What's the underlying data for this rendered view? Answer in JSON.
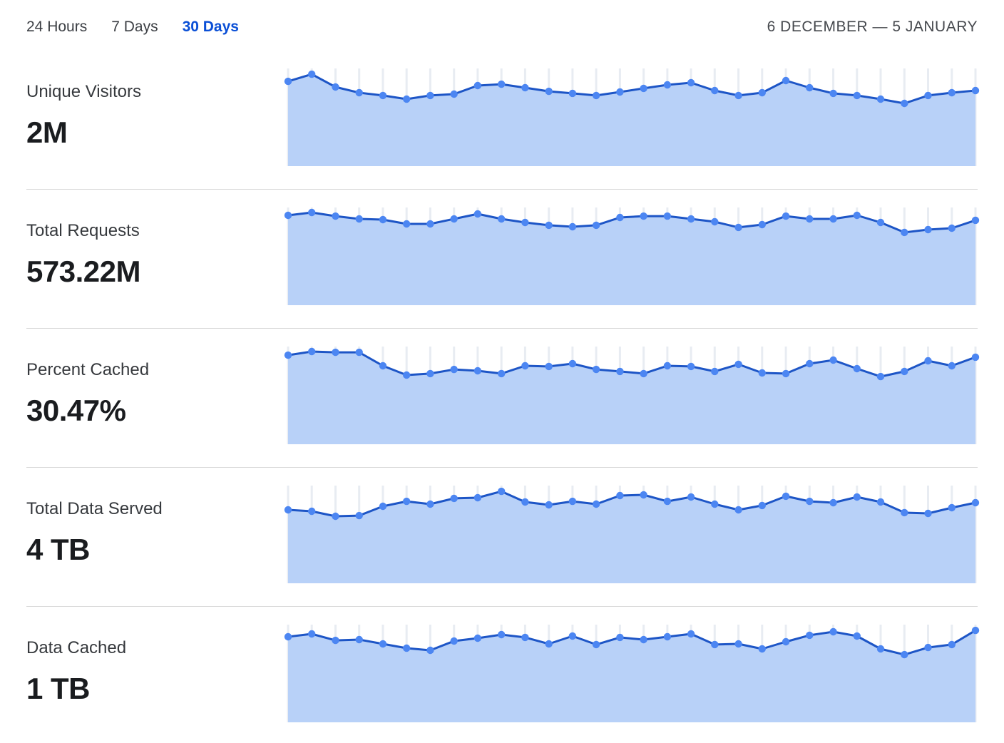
{
  "header": {
    "tabs": [
      {
        "label": "24 Hours",
        "active": false
      },
      {
        "label": "7 Days",
        "active": false
      },
      {
        "label": "30 Days",
        "active": true
      }
    ],
    "date_range": "6 DECEMBER — 5 JANUARY"
  },
  "colors": {
    "active_tab_blue": "#0a4fd6",
    "line_blue": "#1d55c6",
    "dot_blue": "#4c86f2",
    "area_fill_blue": "#b8d1f8",
    "gridline": "#e8ecf2",
    "divider": "#d9d9d9",
    "label_gray": "#36393d",
    "value_black": "#1a1c1f"
  },
  "chart_data": [
    {
      "type": "area",
      "title": "Unique Visitors",
      "display_value": "2M",
      "x": "30 daily points, 6 December – 5 January",
      "legend": "none",
      "grid": "vertical ticks per day",
      "yaxis": "unlabeled (relative 0–1 of panel height)",
      "values_relative": [
        0.868,
        0.941,
        0.81,
        0.752,
        0.723,
        0.686,
        0.723,
        0.737,
        0.825,
        0.839,
        0.803,
        0.766,
        0.745,
        0.723,
        0.759,
        0.796,
        0.832,
        0.854,
        0.774,
        0.723,
        0.752,
        0.876,
        0.803,
        0.745,
        0.723,
        0.686,
        0.642,
        0.723,
        0.752,
        0.774
      ]
    },
    {
      "type": "area",
      "title": "Total Requests",
      "display_value": "573.22M",
      "x": "30 daily points, 6 December – 5 January",
      "legend": "none",
      "grid": "vertical ticks per day",
      "yaxis": "unlabeled (relative 0–1 of panel height)",
      "values_relative": [
        0.92,
        0.949,
        0.912,
        0.883,
        0.876,
        0.832,
        0.832,
        0.883,
        0.934,
        0.883,
        0.847,
        0.818,
        0.803,
        0.818,
        0.898,
        0.912,
        0.912,
        0.883,
        0.854,
        0.796,
        0.825,
        0.912,
        0.883,
        0.883,
        0.92,
        0.847,
        0.745,
        0.774,
        0.788,
        0.869
      ]
    },
    {
      "type": "area",
      "title": "Percent Cached",
      "display_value": "30.47%",
      "x": "30 daily points, 6 December – 5 January",
      "legend": "none",
      "grid": "vertical ticks per day",
      "yaxis": "unlabeled (relative 0–1 of panel height)",
      "values_relative": [
        0.912,
        0.949,
        0.941,
        0.941,
        0.803,
        0.708,
        0.723,
        0.766,
        0.752,
        0.723,
        0.803,
        0.796,
        0.825,
        0.766,
        0.745,
        0.723,
        0.803,
        0.796,
        0.745,
        0.818,
        0.73,
        0.723,
        0.825,
        0.861,
        0.774,
        0.693,
        0.745,
        0.854,
        0.803,
        0.891
      ]
    },
    {
      "type": "area",
      "title": "Total Data Served",
      "display_value": "4 TB",
      "x": "30 daily points, 6 December – 5 January",
      "legend": "none",
      "grid": "vertical ticks per day",
      "yaxis": "unlabeled (relative 0–1 of panel height)",
      "values_relative": [
        0.752,
        0.737,
        0.686,
        0.693,
        0.788,
        0.839,
        0.81,
        0.869,
        0.876,
        0.941,
        0.832,
        0.803,
        0.839,
        0.81,
        0.898,
        0.905,
        0.839,
        0.883,
        0.81,
        0.752,
        0.796,
        0.891,
        0.839,
        0.825,
        0.883,
        0.832,
        0.723,
        0.715,
        0.774,
        0.825
      ]
    },
    {
      "type": "area",
      "title": "Data Cached",
      "display_value": "1 TB",
      "x": "30 daily points, 6 December – 5 January",
      "legend": "none",
      "grid": "vertical ticks per day",
      "yaxis": "unlabeled (relative 0–1 of panel height)",
      "values_relative": [
        0.876,
        0.905,
        0.839,
        0.847,
        0.803,
        0.759,
        0.737,
        0.832,
        0.861,
        0.898,
        0.869,
        0.803,
        0.883,
        0.796,
        0.869,
        0.847,
        0.876,
        0.905,
        0.796,
        0.803,
        0.752,
        0.825,
        0.891,
        0.927,
        0.883,
        0.752,
        0.693,
        0.766,
        0.796,
        0.941
      ]
    }
  ]
}
